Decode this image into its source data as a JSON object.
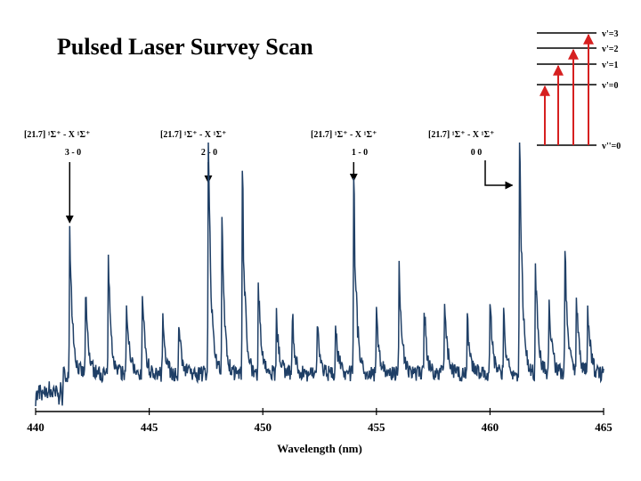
{
  "title": "Pulsed Laser Survey Scan",
  "colors": {
    "spectrum": "#1f3f66",
    "arrow": "#d62020",
    "axis": "#000000"
  },
  "energy_diagram": {
    "levels": [
      "v'=3",
      "v'=2",
      "v'=1",
      "v'=0",
      "v''=0"
    ]
  },
  "annotations": [
    {
      "label": "[21.7] ¹Σ⁺ - X ¹Σ⁺",
      "band": "3 - 0",
      "x": 441.5
    },
    {
      "label": "[21.7] ¹Σ⁺ - X ¹Σ⁺",
      "band": "2 - 0",
      "x": 447.6
    },
    {
      "label": "[21.7] ¹Σ⁺ - X ¹Σ⁺",
      "band": "1 - 0",
      "x": 454.0
    },
    {
      "label": "[21.7] ¹Σ⁺ - X ¹Σ⁺",
      "band": "0   0",
      "x": 461.3
    }
  ],
  "chart_data": {
    "type": "line",
    "title": "Pulsed Laser Survey Scan",
    "xlabel": "Wavelength (nm)",
    "ylabel": "",
    "xlim": [
      440,
      465
    ],
    "ylim": [
      0,
      1
    ],
    "x_ticks": [
      440,
      445,
      450,
      455,
      460,
      465
    ],
    "grid": false,
    "series": [
      {
        "peaks": [
          {
            "x": 441.5,
            "h": 0.55
          },
          {
            "x": 442.2,
            "h": 0.3
          },
          {
            "x": 443.2,
            "h": 0.42
          },
          {
            "x": 444.0,
            "h": 0.28
          },
          {
            "x": 444.7,
            "h": 0.3
          },
          {
            "x": 445.6,
            "h": 0.25
          },
          {
            "x": 446.3,
            "h": 0.2
          },
          {
            "x": 447.6,
            "h": 0.93
          },
          {
            "x": 448.2,
            "h": 0.55
          },
          {
            "x": 449.1,
            "h": 0.75
          },
          {
            "x": 449.8,
            "h": 0.35
          },
          {
            "x": 450.6,
            "h": 0.22
          },
          {
            "x": 451.3,
            "h": 0.22
          },
          {
            "x": 452.4,
            "h": 0.2
          },
          {
            "x": 453.2,
            "h": 0.18
          },
          {
            "x": 454.0,
            "h": 0.75
          },
          {
            "x": 455.0,
            "h": 0.22
          },
          {
            "x": 456.0,
            "h": 0.42
          },
          {
            "x": 457.1,
            "h": 0.25
          },
          {
            "x": 458.0,
            "h": 0.28
          },
          {
            "x": 459.0,
            "h": 0.22
          },
          {
            "x": 460.0,
            "h": 0.28
          },
          {
            "x": 460.6,
            "h": 0.22
          },
          {
            "x": 461.3,
            "h": 0.97
          },
          {
            "x": 462.0,
            "h": 0.42
          },
          {
            "x": 462.6,
            "h": 0.3
          },
          {
            "x": 463.3,
            "h": 0.48
          },
          {
            "x": 463.8,
            "h": 0.28
          },
          {
            "x": 464.3,
            "h": 0.26
          }
        ],
        "decay_nm": 0.12,
        "baseline": 0.14
      }
    ]
  }
}
